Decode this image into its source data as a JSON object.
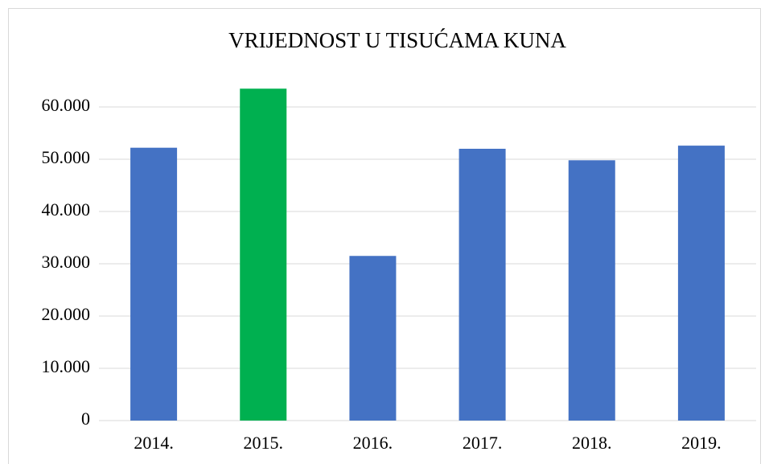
{
  "chart_data": {
    "type": "bar",
    "title": "VRIJEDNOST U TISUĆAMA KUNA",
    "categories": [
      "2014.",
      "2015.",
      "2016.",
      "2017.",
      "2018.",
      "2019."
    ],
    "values": [
      52200,
      63500,
      31500,
      52000,
      49800,
      52600
    ],
    "colors": [
      "#4472c4",
      "#00b050",
      "#4472c4",
      "#4472c4",
      "#4472c4",
      "#4472c4"
    ],
    "ylim": [
      0,
      65000
    ],
    "yticks": [
      0,
      {
        "value": 10000,
        "label": "10.000"
      },
      {
        "value": 20000,
        "label": "20.000"
      },
      {
        "value": 30000,
        "label": "30.000"
      },
      {
        "value": 40000,
        "label": "40.000"
      },
      {
        "value": 50000,
        "label": "50.000"
      },
      {
        "value": 60000,
        "label": "60.000"
      }
    ],
    "grid": true
  }
}
